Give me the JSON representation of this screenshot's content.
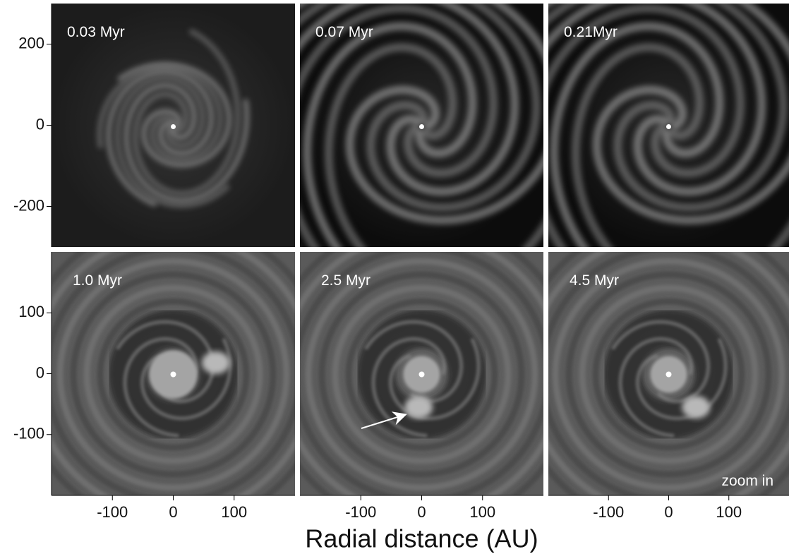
{
  "chart_data": [
    {
      "type": "image",
      "label": "0.03 Myr",
      "ylim": [
        -300,
        300
      ],
      "yticks": [
        -200,
        0,
        200
      ]
    },
    {
      "type": "image",
      "label": "0.07 Myr"
    },
    {
      "type": "image",
      "label": "0.21Myr"
    },
    {
      "type": "image",
      "label": "1.0 Myr",
      "ylim": [
        -200,
        200
      ],
      "yticks": [
        -100,
        0,
        100
      ],
      "xlim": [
        -200,
        200
      ],
      "xticks": [
        -100,
        0,
        100
      ]
    },
    {
      "type": "image",
      "label": "2.5 Myr",
      "xlim": [
        -200,
        200
      ],
      "xticks": [
        -100,
        0,
        100
      ],
      "xlabel": "Radial distance (AU)"
    },
    {
      "type": "image",
      "label": "4.5 Myr",
      "xlim": [
        -200,
        200
      ],
      "xticks": [
        -100,
        0,
        100
      ],
      "annotation": "zoom in"
    }
  ]
}
